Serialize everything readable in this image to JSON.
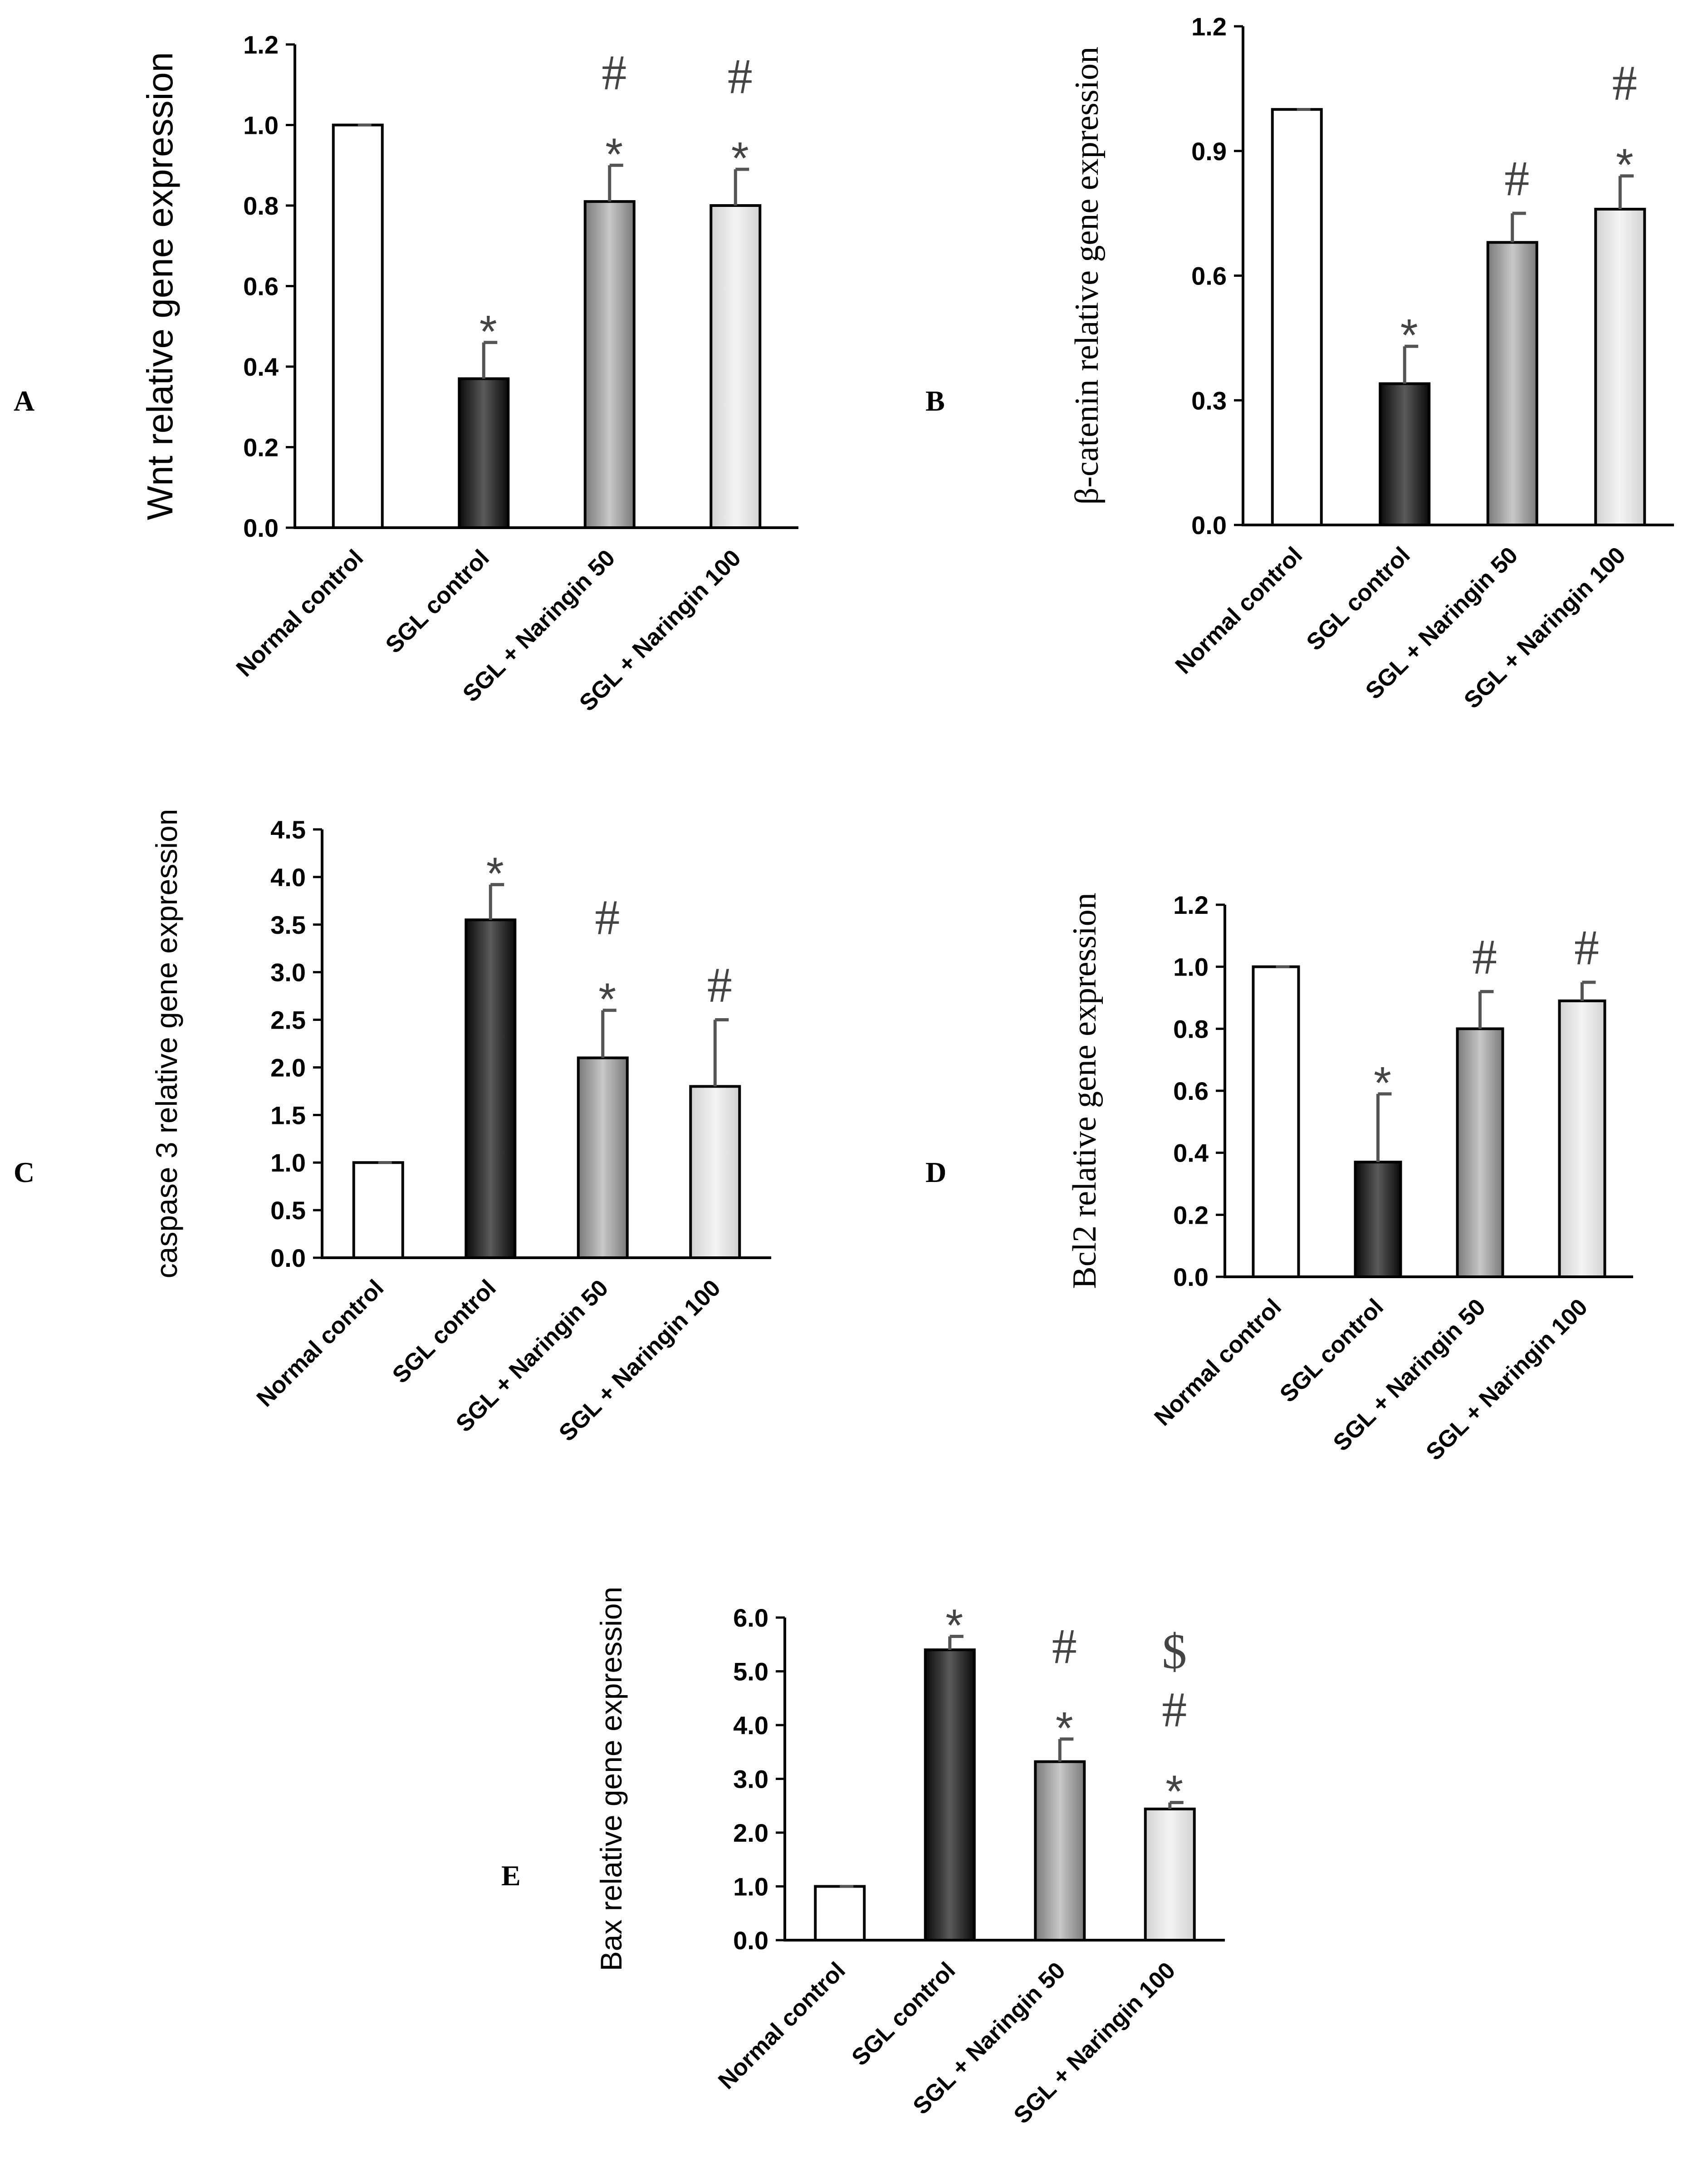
{
  "colors": {
    "axis": "#000000",
    "errorbar": "#555555",
    "bar_fills": [
      "#ffffff",
      "#0a0a0a",
      "#7a7a7a",
      "#d2d2d2"
    ],
    "bar_highlights": [
      "#ffffff",
      "#5a5a5a",
      "#c8c8c8",
      "#f4f4f4"
    ],
    "sig_marks": "#444444"
  },
  "chart_data": [
    {
      "panel": "A",
      "type": "bar",
      "title": "",
      "xlabel": "",
      "ylabel": "Wnt relative gene expression",
      "ylim": [
        0,
        1.2
      ],
      "yticks": [
        "0.0",
        "0.2",
        "0.4",
        "0.6",
        "0.8",
        "1.0",
        "1.2"
      ],
      "categories": [
        "Normal control",
        "SGL control",
        "SGL + Naringin 50",
        "SGL + Naringin 100"
      ],
      "values": [
        1.0,
        0.37,
        0.81,
        0.8
      ],
      "errors": [
        0.0,
        0.09,
        0.09,
        0.09
      ],
      "significance": [
        [],
        [
          "*"
        ],
        [
          "*",
          "#"
        ],
        [
          "*",
          "#"
        ]
      ]
    },
    {
      "panel": "B",
      "type": "bar",
      "title": "",
      "xlabel": "",
      "ylabel": "β-catenin relative gene expression",
      "ylim": [
        0,
        1.2
      ],
      "yticks": [
        "0.0",
        "0.3",
        "0.6",
        "0.9",
        "1.2"
      ],
      "categories": [
        "Normal control",
        "SGL control",
        "SGL + Naringin 50",
        "SGL + Naringin 100"
      ],
      "values": [
        1.0,
        0.34,
        0.68,
        0.76
      ],
      "errors": [
        0.0,
        0.09,
        0.07,
        0.08
      ],
      "significance": [
        [],
        [
          "*"
        ],
        [
          "#"
        ],
        [
          "*",
          "#"
        ]
      ]
    },
    {
      "panel": "C",
      "type": "bar",
      "title": "",
      "xlabel": "",
      "ylabel": "caspase 3 relative gene expression",
      "ylim": [
        0,
        4.5
      ],
      "yticks": [
        "0.0",
        "0.5",
        "1.0",
        "1.5",
        "2.0",
        "2.5",
        "3.0",
        "3.5",
        "4.0",
        "4.5"
      ],
      "categories": [
        "Normal control",
        "SGL control",
        "SGL + Naringin 50",
        "SGL + Naringin 100"
      ],
      "values": [
        1.0,
        3.55,
        2.1,
        1.8
      ],
      "errors": [
        0.0,
        0.37,
        0.5,
        0.7
      ],
      "significance": [
        [],
        [
          "*"
        ],
        [
          "*",
          "#"
        ],
        [
          "#"
        ]
      ]
    },
    {
      "panel": "D",
      "type": "bar",
      "title": "",
      "xlabel": "",
      "ylabel": "Bcl2 relative gene expression",
      "ylim": [
        0,
        1.2
      ],
      "yticks": [
        "0.0",
        "0.2",
        "0.4",
        "0.6",
        "0.8",
        "1.0",
        "1.2"
      ],
      "categories": [
        "Normal control",
        "SGL control",
        "SGL + Naringin 50",
        "SGL + Naringin 100"
      ],
      "values": [
        1.0,
        0.37,
        0.8,
        0.89
      ],
      "errors": [
        0.0,
        0.22,
        0.12,
        0.06
      ],
      "significance": [
        [],
        [
          "*"
        ],
        [
          "#"
        ],
        [
          "#"
        ]
      ]
    },
    {
      "panel": "E",
      "type": "bar",
      "title": "",
      "xlabel": "",
      "ylabel": "Bax relative gene expression",
      "ylim": [
        0,
        6.0
      ],
      "yticks": [
        "0.0",
        "1.0",
        "2.0",
        "3.0",
        "4.0",
        "5.0",
        "6.0"
      ],
      "categories": [
        "Normal control",
        "SGL control",
        "SGL + Naringin 50",
        "SGL + Naringin 100"
      ],
      "values": [
        1.0,
        5.4,
        3.32,
        2.44
      ],
      "errors": [
        0.0,
        0.25,
        0.42,
        0.12
      ],
      "significance": [
        [],
        [
          "*"
        ],
        [
          "*",
          "#"
        ],
        [
          "*",
          "#",
          "$"
        ]
      ]
    }
  ]
}
